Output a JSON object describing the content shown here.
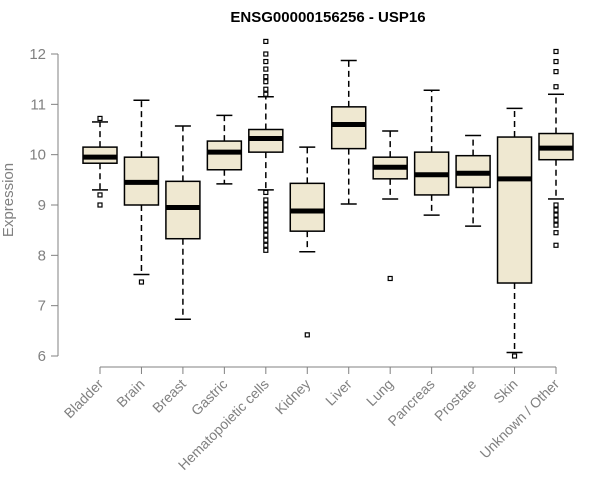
{
  "chart_data": {
    "type": "boxplot",
    "title": "ENSG00000156256 - USP16",
    "xlabel": "",
    "ylabel": "Expression",
    "ylim": [
      6,
      12.2
    ],
    "yticks": [
      6,
      7,
      8,
      9,
      10,
      11,
      12
    ],
    "colors": {
      "box_fill": "#efe8d1",
      "axis": "#808080"
    },
    "categories": [
      "Bladder",
      "Brain",
      "Breast",
      "Gastric",
      "Hematopoietic cells",
      "Kidney",
      "Liver",
      "Lung",
      "Pancreas",
      "Prostate",
      "Skin",
      "Unknown / Other"
    ],
    "boxes": [
      {
        "label": "Bladder",
        "whisker_low": 9.3,
        "q1": 9.83,
        "median": 9.95,
        "q3": 10.15,
        "whisker_high": 10.65,
        "outliers": [
          9.0,
          9.2,
          10.72
        ]
      },
      {
        "label": "Brain",
        "whisker_low": 7.62,
        "q1": 9.0,
        "median": 9.45,
        "q3": 9.95,
        "whisker_high": 11.08,
        "outliers": [
          7.47
        ]
      },
      {
        "label": "Breast",
        "whisker_low": 6.73,
        "q1": 8.33,
        "median": 8.95,
        "q3": 9.47,
        "whisker_high": 10.57,
        "outliers": []
      },
      {
        "label": "Gastric",
        "whisker_low": 9.42,
        "q1": 9.7,
        "median": 10.05,
        "q3": 10.27,
        "whisker_high": 10.78,
        "outliers": []
      },
      {
        "label": "Hematopoietic cells",
        "whisker_low": 9.3,
        "q1": 10.05,
        "median": 10.32,
        "q3": 10.5,
        "whisker_high": 11.15,
        "outliers": [
          8.1,
          8.2,
          8.3,
          8.4,
          8.5,
          8.6,
          8.7,
          8.8,
          8.9,
          9.0,
          9.1,
          9.25,
          11.2,
          11.3,
          11.45,
          11.55,
          11.7,
          11.85,
          12.0,
          12.25
        ]
      },
      {
        "label": "Kidney",
        "whisker_low": 8.07,
        "q1": 8.48,
        "median": 8.88,
        "q3": 9.43,
        "whisker_high": 10.15,
        "outliers": [
          6.42
        ]
      },
      {
        "label": "Liver",
        "whisker_low": 9.02,
        "q1": 10.12,
        "median": 10.6,
        "q3": 10.95,
        "whisker_high": 11.87,
        "outliers": []
      },
      {
        "label": "Lung",
        "whisker_low": 9.12,
        "q1": 9.52,
        "median": 9.75,
        "q3": 9.95,
        "whisker_high": 10.47,
        "outliers": [
          7.54
        ]
      },
      {
        "label": "Pancreas",
        "whisker_low": 8.8,
        "q1": 9.2,
        "median": 9.6,
        "q3": 10.05,
        "whisker_high": 11.28,
        "outliers": []
      },
      {
        "label": "Prostate",
        "whisker_low": 8.58,
        "q1": 9.35,
        "median": 9.63,
        "q3": 9.98,
        "whisker_high": 10.38,
        "outliers": []
      },
      {
        "label": "Skin",
        "whisker_low": 6.07,
        "q1": 7.45,
        "median": 9.52,
        "q3": 10.35,
        "whisker_high": 10.92,
        "outliers": [
          6.0
        ]
      },
      {
        "label": "Unknown / Other",
        "whisker_low": 9.12,
        "q1": 9.9,
        "median": 10.13,
        "q3": 10.42,
        "whisker_high": 11.2,
        "outliers": [
          8.2,
          8.45,
          8.6,
          8.7,
          8.8,
          8.9,
          9.0,
          11.35,
          11.65,
          11.85,
          12.05
        ]
      }
    ]
  }
}
